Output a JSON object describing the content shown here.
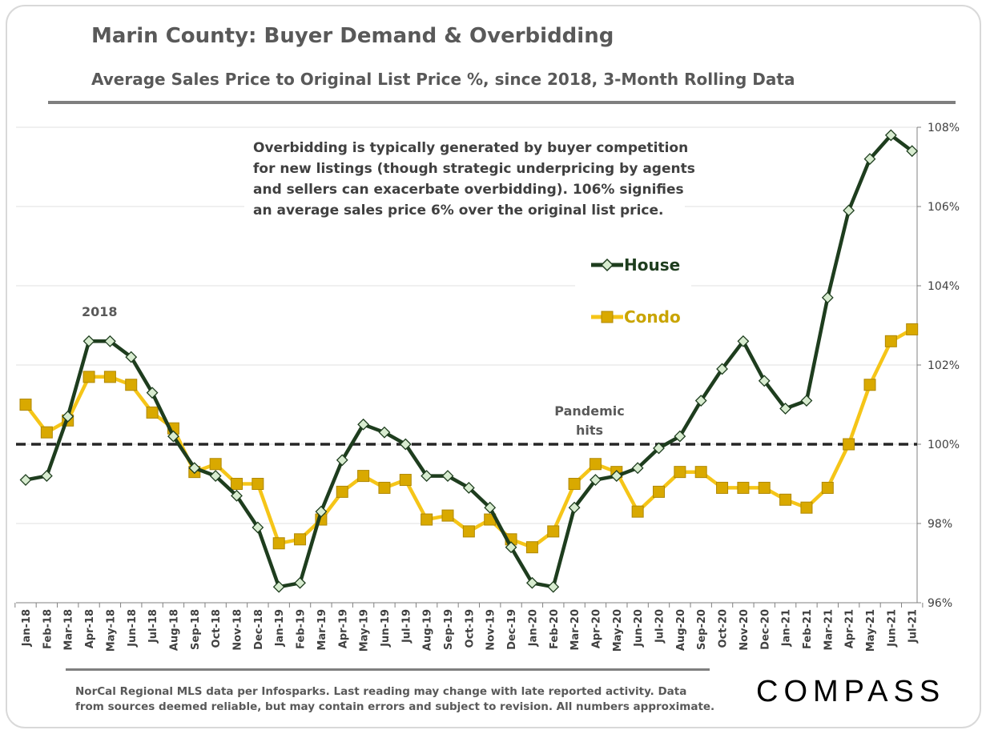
{
  "header": {
    "title": "Marin County: Buyer Demand & Overbidding",
    "subtitle": "Average Sales Price to Original List Price %, since 2018, 3-Month Rolling Data"
  },
  "annotations": {
    "note_lines": [
      "Overbidding is typically generated by buyer competition",
      "for new listings (though strategic underpricing by agents",
      "and sellers can exacerbate overbidding). 106% signifies",
      "an average sales price 6% over the original list price."
    ],
    "year_label": "2018",
    "pandemic_line1": "Pandemic",
    "pandemic_line2": "hits"
  },
  "footer": {
    "source": "NorCal Regional MLS data per Infosparks. Last reading may change with late reported activity. Data from sources deemed reliable, but may contain errors and subject to revision. All numbers approximate.",
    "logo": "COMPASS"
  },
  "colors": {
    "house": "#1e3d1e",
    "house_marker_fill": "#d8ecd0",
    "condo": "#f5c518",
    "condo_marker": "#d9a900",
    "reference_line": "#262626",
    "grid": "#e0e0e0"
  },
  "chart_data": {
    "type": "line",
    "title": "Marin County: Buyer Demand & Overbidding",
    "subtitle": "Average Sales Price to Original List Price %, since 2018, 3-Month Rolling Data",
    "categories": [
      "Jan-18",
      "Feb-18",
      "Mar-18",
      "Apr-18",
      "May-18",
      "Jun-18",
      "Jul-18",
      "Aug-18",
      "Sep-18",
      "Oct-18",
      "Nov-18",
      "Dec-18",
      "Jan-19",
      "Feb-19",
      "Mar-19",
      "Apr-19",
      "May-19",
      "Jun-19",
      "Jul-19",
      "Aug-19",
      "Sep-19",
      "Oct-19",
      "Nov-19",
      "Dec-19",
      "Jan-20",
      "Feb-20",
      "Mar-20",
      "Apr-20",
      "May-20",
      "Jun-20",
      "Jul-20",
      "Aug-20",
      "Sep-20",
      "Oct-20",
      "Nov-20",
      "Dec-20",
      "Jan-21",
      "Feb-21",
      "Mar-21",
      "Apr-21",
      "May-21",
      "Jun-21",
      "Jul-21"
    ],
    "series": [
      {
        "name": "House",
        "marker": "diamond",
        "values": [
          99.1,
          99.2,
          100.7,
          102.6,
          102.6,
          102.2,
          101.3,
          100.2,
          99.4,
          99.2,
          98.7,
          97.9,
          96.4,
          96.5,
          98.3,
          99.6,
          100.5,
          100.3,
          100.0,
          99.2,
          99.2,
          98.9,
          98.4,
          97.4,
          96.5,
          96.4,
          98.4,
          99.1,
          99.2,
          99.4,
          99.9,
          100.2,
          101.1,
          101.9,
          102.6,
          101.6,
          100.9,
          101.1,
          103.7,
          105.9,
          107.2,
          107.8,
          107.4
        ]
      },
      {
        "name": "Condo",
        "marker": "square",
        "values": [
          101.0,
          100.3,
          100.6,
          101.7,
          101.7,
          101.5,
          100.8,
          100.4,
          99.3,
          99.5,
          99.0,
          99.0,
          97.5,
          97.6,
          98.1,
          98.8,
          99.2,
          98.9,
          99.1,
          98.1,
          98.2,
          97.8,
          98.1,
          97.6,
          97.4,
          97.8,
          99.0,
          99.5,
          99.3,
          98.3,
          98.8,
          99.3,
          99.3,
          98.9,
          98.9,
          98.9,
          98.6,
          98.4,
          98.9,
          100.0,
          101.5,
          102.6,
          102.9
        ]
      }
    ],
    "reference_line": 100,
    "ylim": [
      96,
      108
    ],
    "y_ticks": [
      96,
      98,
      100,
      102,
      104,
      106,
      108
    ],
    "y_tick_suffix": "%",
    "y_axis_side": "right",
    "grid": true,
    "legend": "right-upper-middle"
  }
}
